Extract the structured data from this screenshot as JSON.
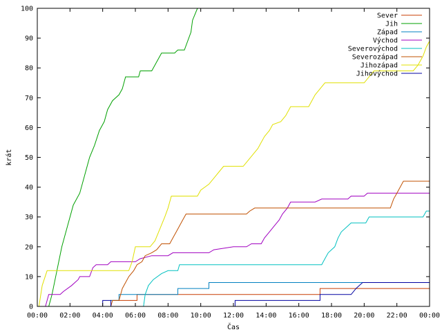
{
  "chart_data": {
    "type": "line",
    "title": "",
    "xlabel": "Čas",
    "ylabel": "krát",
    "xlim": [
      0,
      24
    ],
    "ylim": [
      0,
      100
    ],
    "grid": false,
    "legend_position": "top-right",
    "x_ticks": [
      {
        "v": 0,
        "label": "00:00"
      },
      {
        "v": 2,
        "label": "02:00"
      },
      {
        "v": 4,
        "label": "04:00"
      },
      {
        "v": 6,
        "label": "06:00"
      },
      {
        "v": 8,
        "label": "08:00"
      },
      {
        "v": 10,
        "label": "10:00"
      },
      {
        "v": 12,
        "label": "12:00"
      },
      {
        "v": 14,
        "label": "14:00"
      },
      {
        "v": 16,
        "label": "16:00"
      },
      {
        "v": 18,
        "label": "18:00"
      },
      {
        "v": 20,
        "label": "20:00"
      },
      {
        "v": 22,
        "label": "22:00"
      },
      {
        "v": 24,
        "label": "00:00"
      }
    ],
    "y_ticks": [
      {
        "v": 0,
        "label": "0"
      },
      {
        "v": 10,
        "label": "10"
      },
      {
        "v": 20,
        "label": "20"
      },
      {
        "v": 30,
        "label": "30"
      },
      {
        "v": 40,
        "label": "40"
      },
      {
        "v": 50,
        "label": "50"
      },
      {
        "v": 60,
        "label": "60"
      },
      {
        "v": 70,
        "label": "70"
      },
      {
        "v": 80,
        "label": "80"
      },
      {
        "v": 90,
        "label": "90"
      },
      {
        "v": 100,
        "label": "100"
      }
    ],
    "series": [
      {
        "name": "Sever",
        "color": "#c83c00",
        "points": [
          [
            4.5,
            0
          ],
          [
            4.5,
            2
          ],
          [
            6.1,
            2
          ],
          [
            6.1,
            4
          ],
          [
            17.3,
            4
          ],
          [
            17.3,
            6
          ],
          [
            24,
            6
          ]
        ]
      },
      {
        "name": "Jih",
        "color": "#00a000",
        "points": [
          [
            0.7,
            0
          ],
          [
            0.9,
            4
          ],
          [
            1.2,
            12
          ],
          [
            1.5,
            20
          ],
          [
            1.9,
            28
          ],
          [
            2.2,
            34
          ],
          [
            2.6,
            38
          ],
          [
            2.9,
            44
          ],
          [
            3.2,
            50
          ],
          [
            3.5,
            54
          ],
          [
            3.8,
            59
          ],
          [
            4.1,
            62
          ],
          [
            4.3,
            66
          ],
          [
            4.6,
            69
          ],
          [
            5.0,
            71
          ],
          [
            5.2,
            73
          ],
          [
            5.4,
            77
          ],
          [
            6.2,
            77
          ],
          [
            6.3,
            79
          ],
          [
            7.0,
            79
          ],
          [
            7.3,
            82
          ],
          [
            7.6,
            85
          ],
          [
            8.4,
            85
          ],
          [
            8.6,
            86
          ],
          [
            9.0,
            86
          ],
          [
            9.4,
            92
          ],
          [
            9.5,
            96
          ],
          [
            9.8,
            100
          ]
        ]
      },
      {
        "name": "Západ",
        "color": "#0080c0",
        "points": [
          [
            4.5,
            0
          ],
          [
            4.5,
            2
          ],
          [
            5.0,
            2
          ],
          [
            5.0,
            4
          ],
          [
            8.6,
            4
          ],
          [
            8.6,
            6
          ],
          [
            10.5,
            6
          ],
          [
            10.5,
            8
          ],
          [
            24,
            8
          ]
        ]
      },
      {
        "name": "Východ",
        "color": "#a000c0",
        "points": [
          [
            0.5,
            0
          ],
          [
            0.6,
            2
          ],
          [
            0.7,
            4
          ],
          [
            1.4,
            4
          ],
          [
            1.6,
            5
          ],
          [
            2.1,
            7
          ],
          [
            2.5,
            9
          ],
          [
            2.6,
            10
          ],
          [
            3.2,
            10
          ],
          [
            3.4,
            13
          ],
          [
            3.6,
            14
          ],
          [
            4.3,
            14
          ],
          [
            4.5,
            15
          ],
          [
            5.7,
            15
          ],
          [
            6.0,
            15
          ],
          [
            6.3,
            16
          ],
          [
            7.0,
            17
          ],
          [
            8.0,
            17
          ],
          [
            8.3,
            18
          ],
          [
            10.5,
            18
          ],
          [
            10.8,
            19
          ],
          [
            12.0,
            20
          ],
          [
            12.8,
            20
          ],
          [
            13.1,
            21
          ],
          [
            13.7,
            21
          ],
          [
            13.9,
            23
          ],
          [
            14.2,
            25
          ],
          [
            14.5,
            27
          ],
          [
            14.8,
            29
          ],
          [
            15.0,
            31
          ],
          [
            15.3,
            33
          ],
          [
            15.5,
            35
          ],
          [
            17.0,
            35
          ],
          [
            17.4,
            36
          ],
          [
            19.0,
            36
          ],
          [
            19.2,
            37
          ],
          [
            20.0,
            37
          ],
          [
            20.2,
            38
          ],
          [
            24,
            38
          ]
        ]
      },
      {
        "name": "Severovýchod",
        "color": "#00c0c0",
        "points": [
          [
            6.5,
            0
          ],
          [
            6.6,
            4
          ],
          [
            6.8,
            7
          ],
          [
            7.1,
            9
          ],
          [
            7.6,
            11
          ],
          [
            8.0,
            12
          ],
          [
            8.6,
            12
          ],
          [
            8.7,
            14
          ],
          [
            17.4,
            14
          ],
          [
            17.6,
            16
          ],
          [
            17.8,
            18
          ],
          [
            18.2,
            20
          ],
          [
            18.4,
            23
          ],
          [
            18.6,
            25
          ],
          [
            19.0,
            27
          ],
          [
            19.2,
            28
          ],
          [
            20.1,
            28
          ],
          [
            20.3,
            30
          ],
          [
            23.6,
            30
          ],
          [
            23.8,
            32
          ],
          [
            24,
            32
          ]
        ]
      },
      {
        "name": "Severozápad",
        "color": "#c05000",
        "points": [
          [
            4.5,
            0
          ],
          [
            4.6,
            2
          ],
          [
            5.0,
            2
          ],
          [
            5.2,
            6
          ],
          [
            5.4,
            8
          ],
          [
            5.6,
            10
          ],
          [
            5.9,
            12
          ],
          [
            6.1,
            14
          ],
          [
            6.4,
            15
          ],
          [
            6.6,
            17
          ],
          [
            7.0,
            18
          ],
          [
            7.3,
            19
          ],
          [
            7.6,
            21
          ],
          [
            8.1,
            21
          ],
          [
            8.3,
            23
          ],
          [
            8.5,
            25
          ],
          [
            8.7,
            27
          ],
          [
            8.9,
            29
          ],
          [
            9.1,
            31
          ],
          [
            12.8,
            31
          ],
          [
            13.0,
            32
          ],
          [
            13.3,
            33
          ],
          [
            21.6,
            33
          ],
          [
            21.8,
            36
          ],
          [
            22.0,
            38
          ],
          [
            22.2,
            40
          ],
          [
            22.4,
            42
          ],
          [
            24,
            42
          ]
        ]
      },
      {
        "name": "Jihozápad",
        "color": "#e0e000",
        "points": [
          [
            0.1,
            0
          ],
          [
            0.3,
            7
          ],
          [
            0.6,
            12
          ],
          [
            5.6,
            12
          ],
          [
            5.8,
            15
          ],
          [
            6.0,
            20
          ],
          [
            6.9,
            20
          ],
          [
            7.2,
            22
          ],
          [
            7.5,
            26
          ],
          [
            7.8,
            30
          ],
          [
            8.0,
            33
          ],
          [
            8.2,
            37
          ],
          [
            9.8,
            37
          ],
          [
            10.0,
            39
          ],
          [
            10.5,
            41
          ],
          [
            10.8,
            43
          ],
          [
            11.1,
            45
          ],
          [
            11.4,
            47
          ],
          [
            12.6,
            47
          ],
          [
            12.9,
            49
          ],
          [
            13.2,
            51
          ],
          [
            13.5,
            53
          ],
          [
            13.7,
            55
          ],
          [
            13.9,
            57
          ],
          [
            14.2,
            59
          ],
          [
            14.4,
            61
          ],
          [
            14.9,
            62
          ],
          [
            15.2,
            64
          ],
          [
            15.5,
            67
          ],
          [
            16.6,
            67
          ],
          [
            16.8,
            69
          ],
          [
            17.0,
            71
          ],
          [
            17.3,
            73
          ],
          [
            17.6,
            75
          ],
          [
            20.0,
            75
          ],
          [
            20.3,
            77
          ],
          [
            20.6,
            79
          ],
          [
            23.0,
            79
          ],
          [
            23.3,
            81
          ],
          [
            23.6,
            84
          ],
          [
            23.8,
            87
          ],
          [
            24,
            89
          ]
        ]
      },
      {
        "name": "Jihovýchod",
        "color": "#0000a0",
        "points": [
          [
            4.0,
            0
          ],
          [
            4.0,
            2
          ],
          [
            4.5,
            2
          ],
          [
            4.5,
            0
          ],
          [
            12.1,
            0
          ],
          [
            12.1,
            2
          ],
          [
            17.3,
            2
          ],
          [
            17.3,
            4
          ],
          [
            19.2,
            4
          ],
          [
            19.5,
            6
          ],
          [
            19.9,
            8
          ],
          [
            24,
            8
          ]
        ]
      }
    ]
  }
}
